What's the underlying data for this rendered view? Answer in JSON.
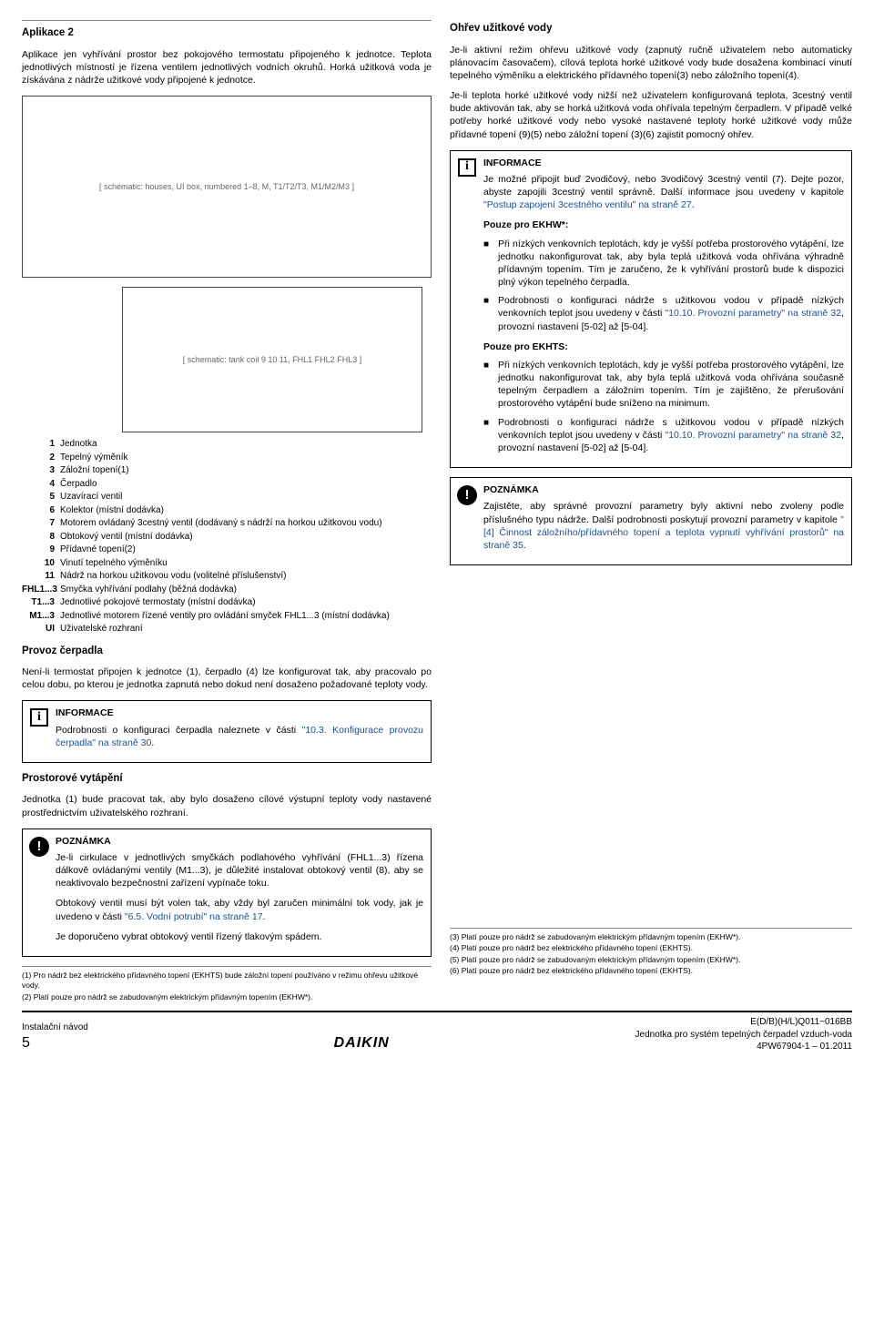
{
  "left": {
    "app_title": "Aplikace 2",
    "intro": "Aplikace jen vyhřívání prostor bez pokojového termostatu připojeného k jednotce. Teplota jednotlivých místností je řízena ventilem jednotlivých vodních okruhů. Horká užitková voda je získávána z nádrže užitkové vody připojené k jednotce.",
    "diagram1_desc": "[ schematic: houses, UI box, numbered 1–8, M, T1/T2/T3, M1/M2/M3 ]",
    "diagram2_desc": "[ schematic: tank coil 9 10 11, FHL1 FHL2 FHL3 ]",
    "legend": [
      {
        "k": "1",
        "v": "Jednotka"
      },
      {
        "k": "2",
        "v": "Tepelný výměník"
      },
      {
        "k": "3",
        "v": "Záložní topení(1)"
      },
      {
        "k": "4",
        "v": "Čerpadlo"
      },
      {
        "k": "5",
        "v": "Uzavírací ventil"
      },
      {
        "k": "6",
        "v": "Kolektor (místní dodávka)"
      },
      {
        "k": "7",
        "v": "Motorem ovládaný 3cestný ventil (dodávaný s nádrží na horkou užitkovou vodu)"
      },
      {
        "k": "8",
        "v": "Obtokový ventil (místní dodávka)"
      },
      {
        "k": "9",
        "v": "Přídavné topení(2)"
      },
      {
        "k": "10",
        "v": "Vinutí tepelného výměníku"
      },
      {
        "k": "11",
        "v": "Nádrž na horkou užitkovou vodu (volitelné příslušenství)"
      },
      {
        "k": "FHL1...3",
        "v": "Smyčka vyhřívání podlahy (běžná dodávka)"
      },
      {
        "k": "T1...3",
        "v": "Jednotlivé pokojové termostaty (místní dodávka)"
      },
      {
        "k": "M1...3",
        "v": "Jednotlivé motorem řízené ventily pro ovládání smyček FHL1...3 (místní dodávka)"
      },
      {
        "k": "UI",
        "v": "Uživatelské rozhraní"
      }
    ],
    "sec1_title": "Provoz čerpadla",
    "sec1_p": "Není-li termostat připojen k jednotce (1), čerpadlo (4) lze konfigurovat tak, aby pracovalo po celou dobu, po kterou je jednotka zapnutá nebo dokud není dosaženo požadované teploty vody.",
    "info1_title": "INFORMACE",
    "info1_body_a": "Podrobnosti o konfiguraci čerpadla naleznete v části ",
    "info1_link": "\"10.3. Konfigurace provozu čerpadla\" na straně 30",
    "sec2_title": "Prostorové vytápění",
    "sec2_p": "Jednotka (1) bude pracovat tak, aby bylo dosaženo cílové výstupní teploty vody nastavené prostřednictvím uživatelského rozhraní.",
    "note1_title": "POZNÁMKA",
    "note1_p1": "Je-li cirkulace v jednotlivých smyčkách podlahového vyhřívání (FHL1...3) řízena dálkově ovládanými ventily (M1...3), je důležité instalovat obtokový ventil (8), aby se neaktivovalo bezpečnostní zařízení vypínače toku.",
    "note1_p2a": "Obtokový ventil musí být volen tak, aby vždy byl zaručen minimální tok vody, jak je uvedeno v části ",
    "note1_link": "\"6.5. Vodní potrubí\" na straně 17",
    "note1_p3": "Je doporučeno vybrat obtokový ventil řízený tlakovým spádem.",
    "fn1": "(1) Pro nádrž bez elektrického přídavného topení (EKHTS) bude záložní topení používáno v režimu ohřevu užitkové vody.",
    "fn2": "(2) Platí pouze pro nádrž se zabudovaným elektrickým přídavným topením (EKHW*)."
  },
  "right": {
    "sec_title": "Ohřev užitkové vody",
    "p1": "Je-li aktivní režim ohřevu užitkové vody (zapnutý ručně uživatelem nebo automaticky plánovacím časovačem), cílová teplota horké užitkové vody bude dosažena kombinací vinutí tepelného výměníku a elektrického přídavného topení(3) nebo záložního topení(4).",
    "p2": "Je-li teplota horké užitkové vody nižší než uživatelem konfigurovaná teplota, 3cestný ventil bude aktivován tak, aby se horká užitková voda ohřívala tepelným čerpadlem. V případě velké potřeby horké užitkové vody nebo vysoké nastavené teploty horké užitkové vody může přídavné topení (9)(5) nebo záložní topení (3)(6) zajistit pomocný ohřev.",
    "info2_title": "INFORMACE",
    "info2_p1a": "Je možné připojit buď 2vodičový, nebo 3vodičový 3cestný ventil (7). Dejte pozor, abyste zapojili 3cestný ventil správně. Další informace jsou uvedeny v kapitole ",
    "info2_link": "\"Postup zapojení 3cestného ventilu\" na straně 27",
    "ekhw_title": "Pouze pro EKHW*:",
    "ekhw_b1": "Při nízkých venkovních teplotách, kdy je vyšší potřeba prostorového vytápění, lze jednotku nakonfigurovat tak, aby byla teplá užitková voda ohřívána výhradně přídavným topením. Tím je zaručeno, že k vyhřívání prostorů bude k dispozici plný výkon tepelného čerpadla.",
    "ekhw_b2a": "Podrobnosti o konfiguraci nádrže s užitkovou vodou v případě nízkých venkovních teplot jsou uvedeny v části ",
    "ekhw_b2_link": "\"10.10. Provozní parametry\" na straně 32",
    "ekhw_b2b": ", provozní nastavení [5-02] až [5-04].",
    "ekhts_title": "Pouze pro EKHTS:",
    "ekhts_b1": "Při nízkých venkovních teplotách, kdy je vyšší potřeba prostorového vytápění, lze jednotku nakonfigurovat tak, aby byla teplá užitková voda ohřívána současně tepelným čerpadlem a záložním topením. Tím je zajištěno, že přerušování prostorového vytápění bude sníženo na minimum.",
    "ekhts_b2a": "Podrobnosti o konfiguraci nádrže s užitkovou vodou v případě nízkých venkovních teplot jsou uvedeny v části ",
    "ekhts_b2_link": "\"10.10. Provozní parametry\" na straně 32",
    "ekhts_b2b": ", provozní nastavení [5-02] až [5-04].",
    "note2_title": "POZNÁMKA",
    "note2_p_a": "Zajistěte, aby správné provozní parametry byly aktivní nebo zvoleny podle příslušného typu nádrže. Další podrobnosti poskytují provozní parametry v kapitole ",
    "note2_link": "\"[4] Činnost záložního/přídavného topení a teplota vypnutí vyhřívání prostorů\" na straně 35",
    "fn3": "(3) Platí pouze pro nádrž se zabudovaným elektrickým přídavným topením (EKHW*).",
    "fn4": "(4) Platí pouze pro nádrž bez elektrického přídavného topení (EKHTS).",
    "fn5": "(5) Platí pouze pro nádrž se zabudovaným elektrickým přídavným topením (EKHW*).",
    "fn6": "(6) Platí pouze pro nádrž bez elektrického přídavného topení (EKHTS)."
  },
  "footer": {
    "left1": "Instalační návod",
    "left2": "5",
    "center": "DAIKIN",
    "right1": "E(D/B)(H/L)Q011~016BB",
    "right2": "Jednotka pro systém tepelných čerpadel vzduch-voda",
    "right3": "4PW67904-1 – 01.2011"
  }
}
